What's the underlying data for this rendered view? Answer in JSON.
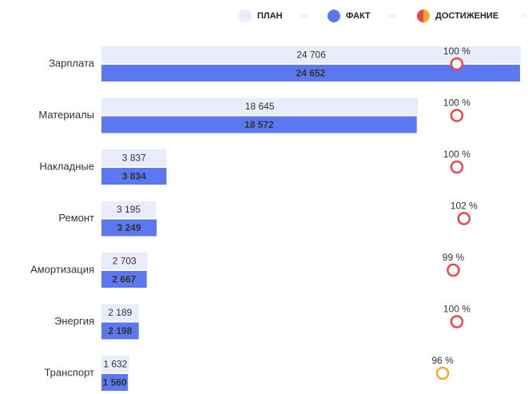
{
  "chart_data": {
    "type": "bar",
    "categories": [
      "Зарплата",
      "Материалы",
      "Накладные",
      "Ремонт",
      "Амортизация",
      "Энергия",
      "Транспорт"
    ],
    "series": [
      {
        "name": "ПЛАН",
        "color": "#e8ecfb",
        "values": [
          24706,
          18645,
          3837,
          3195,
          2703,
          2189,
          1632
        ],
        "value_labels": [
          "24 706",
          "18 645",
          "3 837",
          "3 195",
          "2 703",
          "2 189",
          "1 632"
        ]
      },
      {
        "name": "ФАКТ",
        "color": "#5b78f0",
        "values": [
          24652,
          18572,
          3834,
          3249,
          2667,
          2198,
          1560
        ],
        "value_labels": [
          "24 652",
          "18 572",
          "3 834",
          "3 249",
          "2 667",
          "2 198",
          "1 560"
        ]
      },
      {
        "name": "ДОСТИЖЕНИЕ",
        "axis": "x2",
        "colors": [
          "#e8474a",
          "#e8474a",
          "#e8474a",
          "#e8474a",
          "#e8474a",
          "#e8474a",
          "#f0a830"
        ],
        "values": [
          100,
          100,
          100,
          102,
          99,
          100,
          96
        ],
        "value_labels": [
          "100 %",
          "100 %",
          "100 %",
          "102 %",
          "99 %",
          "100 %",
          "96 %"
        ]
      }
    ],
    "xlim": [
      0,
      24700
    ],
    "x2lim": [
      0,
      118
    ],
    "legend": "top-right"
  }
}
